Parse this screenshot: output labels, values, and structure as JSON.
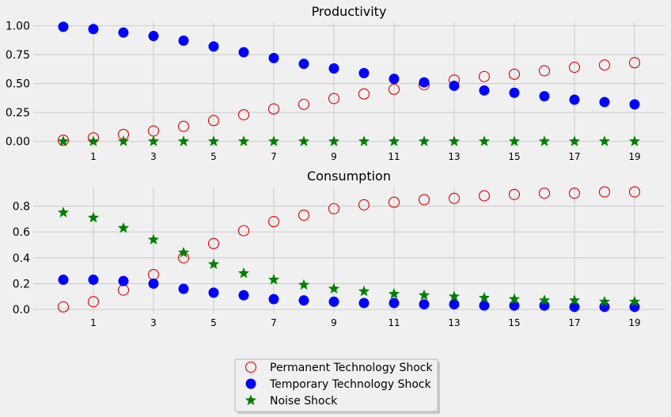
{
  "chart_data": [
    {
      "type": "scatter",
      "title": "Productivity",
      "xlabel": "",
      "ylabel": "",
      "xlim": [
        -1,
        20
      ],
      "ylim": [
        -0.05,
        1.03
      ],
      "xticks": [
        1,
        3,
        5,
        7,
        9,
        11,
        13,
        15,
        17,
        19
      ],
      "yticks": [
        0.0,
        0.25,
        0.5,
        0.75,
        1.0
      ],
      "ytick_labels": [
        "0.00",
        "0.25",
        "0.50",
        "0.75",
        "1.00"
      ],
      "grid": true,
      "x": [
        0,
        1,
        2,
        3,
        4,
        5,
        6,
        7,
        8,
        9,
        10,
        11,
        12,
        13,
        14,
        15,
        16,
        17,
        18,
        19
      ],
      "series": [
        {
          "name": "Permanent Technology Shock",
          "values": [
            0.01,
            0.03,
            0.06,
            0.09,
            0.13,
            0.18,
            0.23,
            0.28,
            0.32,
            0.37,
            0.41,
            0.45,
            0.49,
            0.53,
            0.56,
            0.58,
            0.61,
            0.64,
            0.66,
            0.68
          ]
        },
        {
          "name": "Temporary Technology Shock",
          "values": [
            0.99,
            0.97,
            0.94,
            0.91,
            0.87,
            0.82,
            0.77,
            0.72,
            0.67,
            0.63,
            0.59,
            0.54,
            0.51,
            0.48,
            0.44,
            0.42,
            0.39,
            0.36,
            0.34,
            0.32
          ]
        },
        {
          "name": "Noise Shock",
          "values": [
            0,
            0,
            0,
            0,
            0,
            0,
            0,
            0,
            0,
            0,
            0,
            0,
            0,
            0,
            0,
            0,
            0,
            0,
            0,
            0
          ]
        }
      ]
    },
    {
      "type": "scatter",
      "title": "Consumption",
      "xlabel": "",
      "ylabel": "",
      "xlim": [
        -1,
        20
      ],
      "ylim": [
        -0.03,
        0.95
      ],
      "xticks": [
        1,
        3,
        5,
        7,
        9,
        11,
        13,
        15,
        17,
        19
      ],
      "yticks": [
        0.0,
        0.2,
        0.4,
        0.6,
        0.8
      ],
      "ytick_labels": [
        "0.0",
        "0.2",
        "0.4",
        "0.6",
        "0.8"
      ],
      "grid": true,
      "x": [
        0,
        1,
        2,
        3,
        4,
        5,
        6,
        7,
        8,
        9,
        10,
        11,
        12,
        13,
        14,
        15,
        16,
        17,
        18,
        19
      ],
      "series": [
        {
          "name": "Permanent Technology Shock",
          "values": [
            0.02,
            0.06,
            0.15,
            0.27,
            0.4,
            0.51,
            0.61,
            0.68,
            0.73,
            0.78,
            0.81,
            0.83,
            0.85,
            0.86,
            0.88,
            0.89,
            0.9,
            0.9,
            0.91,
            0.91
          ]
        },
        {
          "name": "Temporary Technology Shock",
          "values": [
            0.23,
            0.23,
            0.22,
            0.2,
            0.16,
            0.13,
            0.11,
            0.08,
            0.07,
            0.06,
            0.05,
            0.05,
            0.04,
            0.04,
            0.03,
            0.03,
            0.03,
            0.02,
            0.02,
            0.02
          ]
        },
        {
          "name": "Noise Shock",
          "values": [
            0.75,
            0.71,
            0.63,
            0.54,
            0.44,
            0.35,
            0.28,
            0.23,
            0.19,
            0.16,
            0.14,
            0.12,
            0.11,
            0.1,
            0.09,
            0.08,
            0.07,
            0.07,
            0.06,
            0.06
          ]
        }
      ]
    }
  ],
  "legend": {
    "placement": "bottom-center",
    "items": [
      {
        "label": "Permanent Technology Shock",
        "marker": "open-circle",
        "color": "#e00000"
      },
      {
        "label": "Temporary Technology Shock",
        "marker": "filled-circle",
        "color": "#0000ff"
      },
      {
        "label": "Noise Shock",
        "marker": "star",
        "color": "#008000"
      }
    ]
  },
  "colors": {
    "permanent": "#e00000",
    "temporary": "#0000ff",
    "noise": "#008000",
    "background": "#f0f0f0",
    "grid": "#cbcbcb"
  }
}
